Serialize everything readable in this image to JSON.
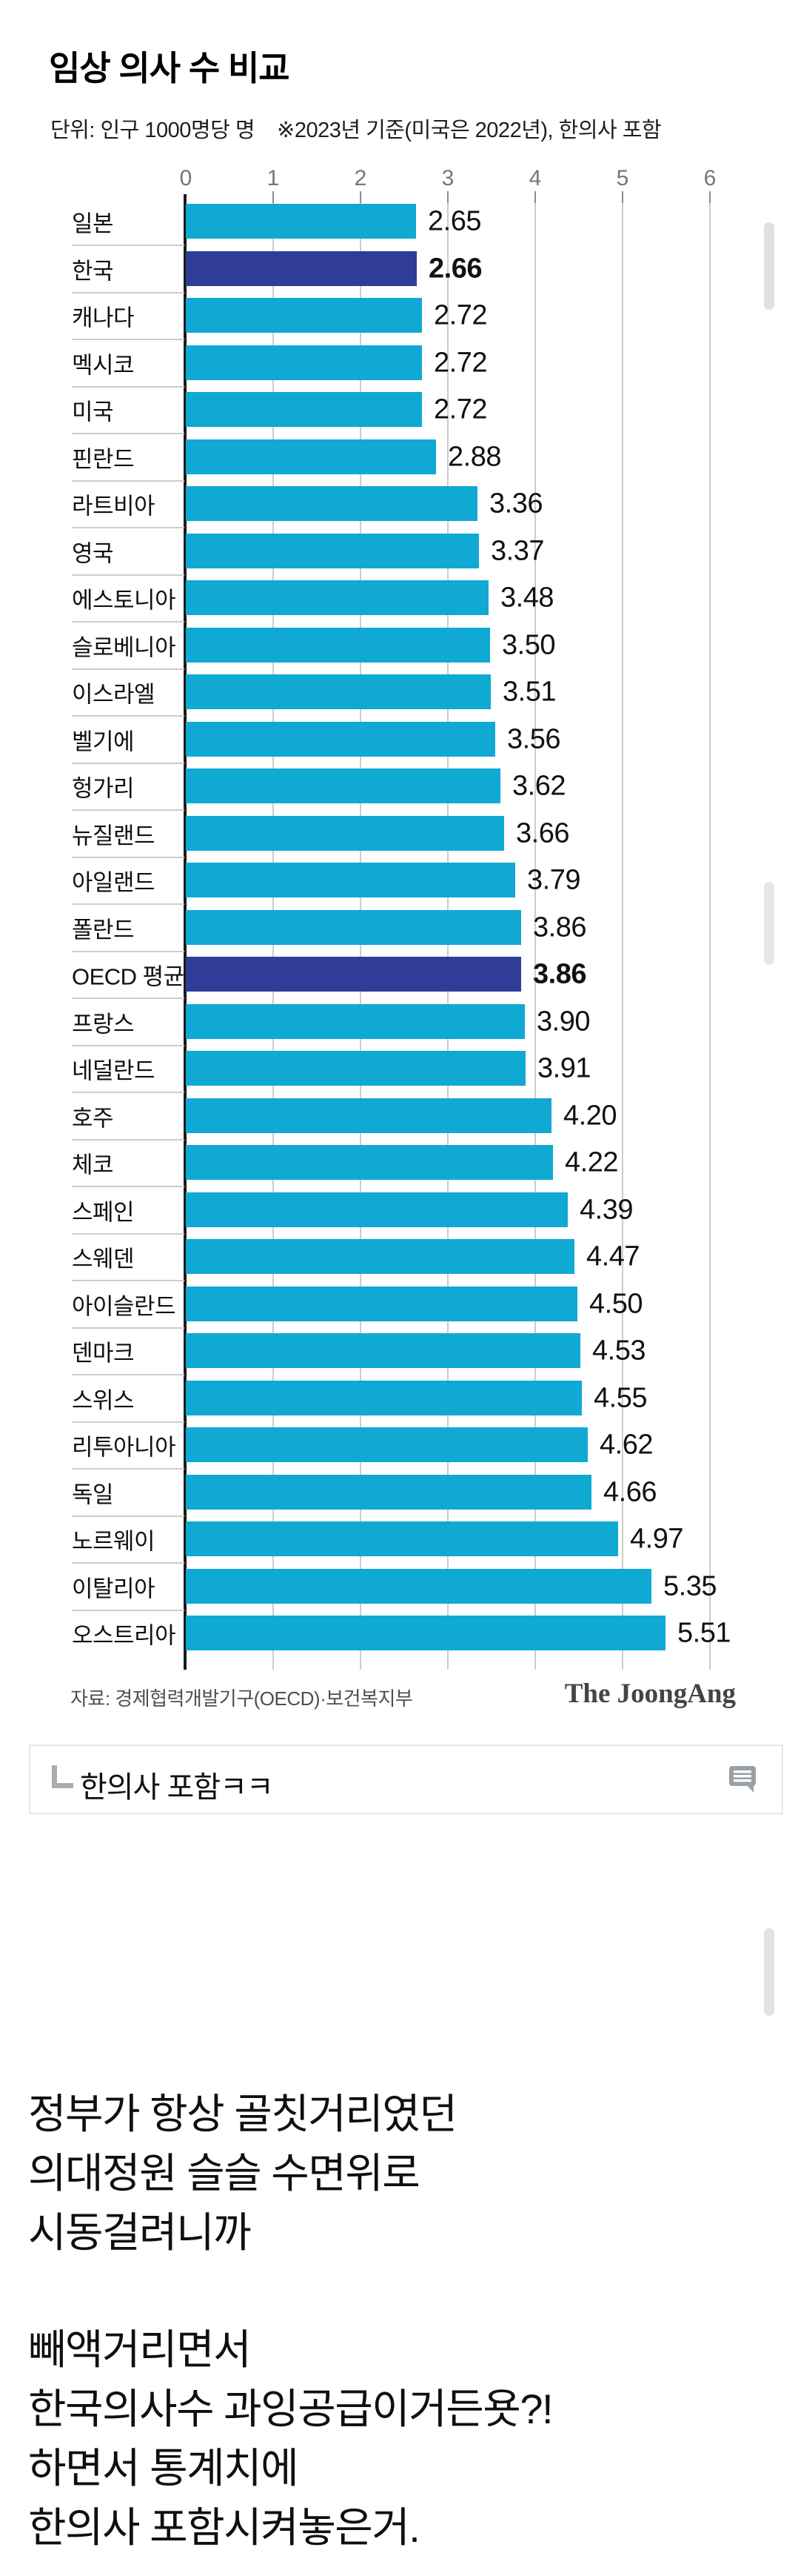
{
  "header": {
    "title": "임상 의사 수 비교",
    "subtitle_unit": "단위: 인구 1000명당 명",
    "subtitle_note": "※2023년 기준(미국은 2022년), 한의사 포함"
  },
  "chart_data": {
    "type": "bar",
    "orientation": "horizontal",
    "title": "임상 의사 수 비교",
    "unit_label": "단위: 인구 1000명당 명",
    "note": "※2023년 기준(미국은 2022년), 한의사 포함",
    "xlim": [
      0,
      6
    ],
    "x_ticks": [
      0,
      1,
      2,
      3,
      4,
      5,
      6
    ],
    "grid": true,
    "categories": [
      "일본",
      "한국",
      "캐나다",
      "멕시코",
      "미국",
      "핀란드",
      "라트비아",
      "영국",
      "에스토니아",
      "슬로베니아",
      "이스라엘",
      "벨기에",
      "헝가리",
      "뉴질랜드",
      "아일랜드",
      "폴란드",
      "OECD 평균",
      "프랑스",
      "네덜란드",
      "호주",
      "체코",
      "스페인",
      "스웨덴",
      "아이슬란드",
      "덴마크",
      "스위스",
      "리투아니아",
      "독일",
      "노르웨이",
      "이탈리아",
      "오스트리아"
    ],
    "values": [
      2.65,
      2.66,
      2.72,
      2.72,
      2.72,
      2.88,
      3.36,
      3.37,
      3.48,
      3.5,
      3.51,
      3.56,
      3.62,
      3.66,
      3.79,
      3.86,
      3.86,
      3.9,
      3.91,
      4.2,
      4.22,
      4.39,
      4.47,
      4.5,
      4.53,
      4.55,
      4.62,
      4.66,
      4.97,
      5.35,
      5.51
    ],
    "labels": [
      "2.65",
      "2.66",
      "2.72",
      "2.72",
      "2.72",
      "2.88",
      "3.36",
      "3.37",
      "3.48",
      "3.50",
      "3.51",
      "3.56",
      "3.62",
      "3.66",
      "3.79",
      "3.86",
      "3.86",
      "3.90",
      "3.91",
      "4.20",
      "4.22",
      "4.39",
      "4.47",
      "4.50",
      "4.53",
      "4.55",
      "4.62",
      "4.66",
      "4.97",
      "5.35",
      "5.51"
    ],
    "highlight_indices": [
      1,
      16
    ],
    "highlighted_categories": [
      "한국",
      "OECD 평균"
    ],
    "colors": {
      "bar": "#10a9d4",
      "highlight": "#2f3d99"
    },
    "legend_position": "none"
  },
  "footer": {
    "source": "자료: 경제협력개발기구(OECD)·보건복지부",
    "brand": "The JoongAng"
  },
  "comment": {
    "text": "한의사 포함ㅋㅋ"
  },
  "body_lines": [
    "정부가 항상 골칫거리였던",
    "의대정원 슬슬 수면위로",
    "시동걸려니까",
    "빼액거리면서",
    "한국의사수 과잉공급이거든욧?!",
    "하면서 통계치에",
    "한의사 포함시켜놓은거."
  ]
}
